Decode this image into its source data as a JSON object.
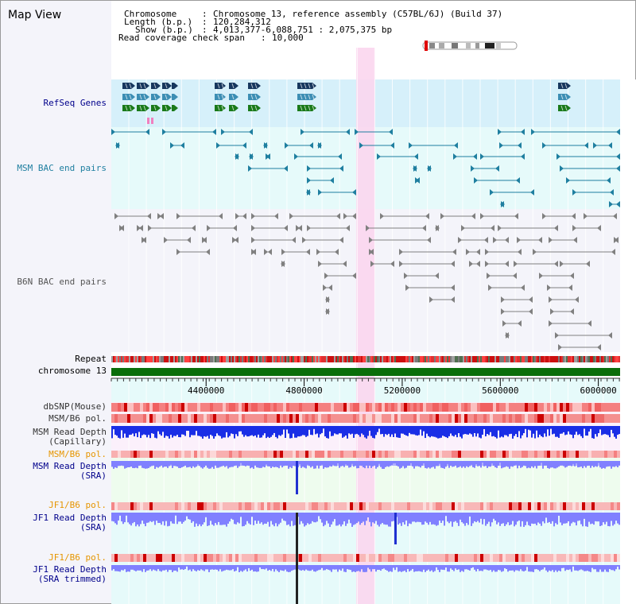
{
  "app": {
    "title": "Map View"
  },
  "info": {
    "chromosome_key": "Chromosome",
    "chromosome_value": "Chromosome 13, reference assembly (C57BL/6J) (Build 37)",
    "length_key": "Length (b.p.)",
    "length_value": "120,284,312",
    "show_key": "Show (b.p.)",
    "show_value": "4,013,377-6,088,751 : 2,075,375 bp",
    "coverage_key": "Read coverage check span",
    "coverage_value": "10,000"
  },
  "view": {
    "start_bp": 4013377,
    "end_bp": 6088751
  },
  "axis": {
    "ticks": [
      4400000,
      4800000,
      5200000,
      5600000,
      6000000
    ],
    "tick_labels": [
      "4400000",
      "4800000",
      "5200000",
      "5600000",
      "6000000"
    ]
  },
  "tracks": {
    "refseq": "RefSeq Genes",
    "msm_bac": "MSM BAC end pairs",
    "b6n_bac": "B6N BAC end pairs",
    "repeat": "Repeat",
    "chromosome": "chromosome 13",
    "dbsnp": "dbSNP(Mouse)",
    "msm_b6_pol": "MSM/B6 pol.",
    "msm_depth_cap_1": "MSM Read Depth",
    "msm_depth_cap_2": "(Capillary)",
    "msm_b6_pol_2": "MSM/B6 pol.",
    "msm_depth_sra_1": "MSM Read Depth",
    "msm_depth_sra_2": "(SRA)",
    "jf1_pol_1": "JF1/B6 pol.",
    "jf1_depth_sra_1": "JF1 Read Depth",
    "jf1_depth_sra_2": "(SRA)",
    "jf1_pol_2": "JF1/B6 pol.",
    "jf1_depth_trim_1": "JF1 Read Depth",
    "jf1_depth_trim_2": "(SRA trimmed)"
  },
  "colors": {
    "refseq_bg": "#d6f0fa",
    "bac_bg": "#e6fafa",
    "b6n_bg": "#f4f4fa",
    "highlight": "#fbd6ee",
    "left_panel": "#f4f4fa",
    "gene_navy": "#17375e",
    "gene_teal": "#3c8eb4",
    "gene_green": "#1a7a1a",
    "msm_bac": "#1f7fa0",
    "b6n_bac": "#808080",
    "chromosome": "#0a6e0a",
    "depth_cap": "#1a2ee6",
    "depth_sra": "#8080ff",
    "pol_red": "#e66060",
    "label_navy": "#00008b",
    "label_orange": "#e69500"
  }
}
